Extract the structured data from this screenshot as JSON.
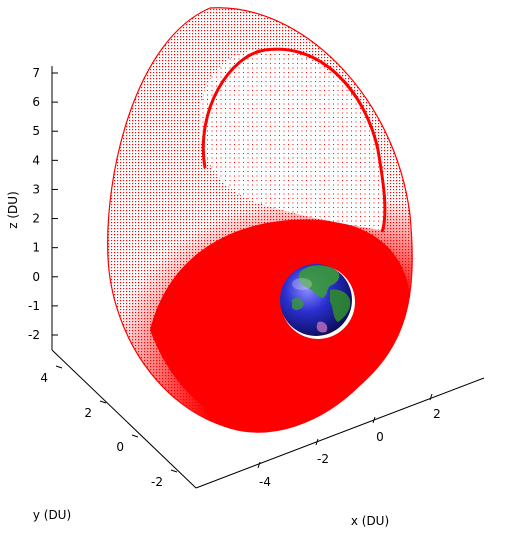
{
  "chart_data": {
    "type": "scatter",
    "dimensions": 3,
    "title": "",
    "xlabel": "x (DU)",
    "ylabel": "y (DU)",
    "zlabel": "z (DU)",
    "x_ticks": [
      "-4",
      "-2",
      "0",
      "2"
    ],
    "y_ticks": [
      "-2",
      "0",
      "2",
      "4"
    ],
    "z_ticks": [
      "-2",
      "-1",
      "0",
      "1",
      "2",
      "3",
      "4",
      "5",
      "6",
      "7"
    ],
    "zlim": [
      -2.6,
      7.4
    ],
    "grid": false,
    "legend": "none",
    "series": [
      {
        "marker": "dot",
        "color": "#ff0000"
      }
    ],
    "central_body": {
      "icon": "earth-globe-icon",
      "center": [
        0,
        0,
        0
      ],
      "radius": 1
    }
  },
  "colors": {
    "trajectory": "#ff0000",
    "axes": "#000000",
    "background": "#ffffff",
    "earth_ocean": "#2a2fd0",
    "earth_land": "#2f8a2f"
  }
}
